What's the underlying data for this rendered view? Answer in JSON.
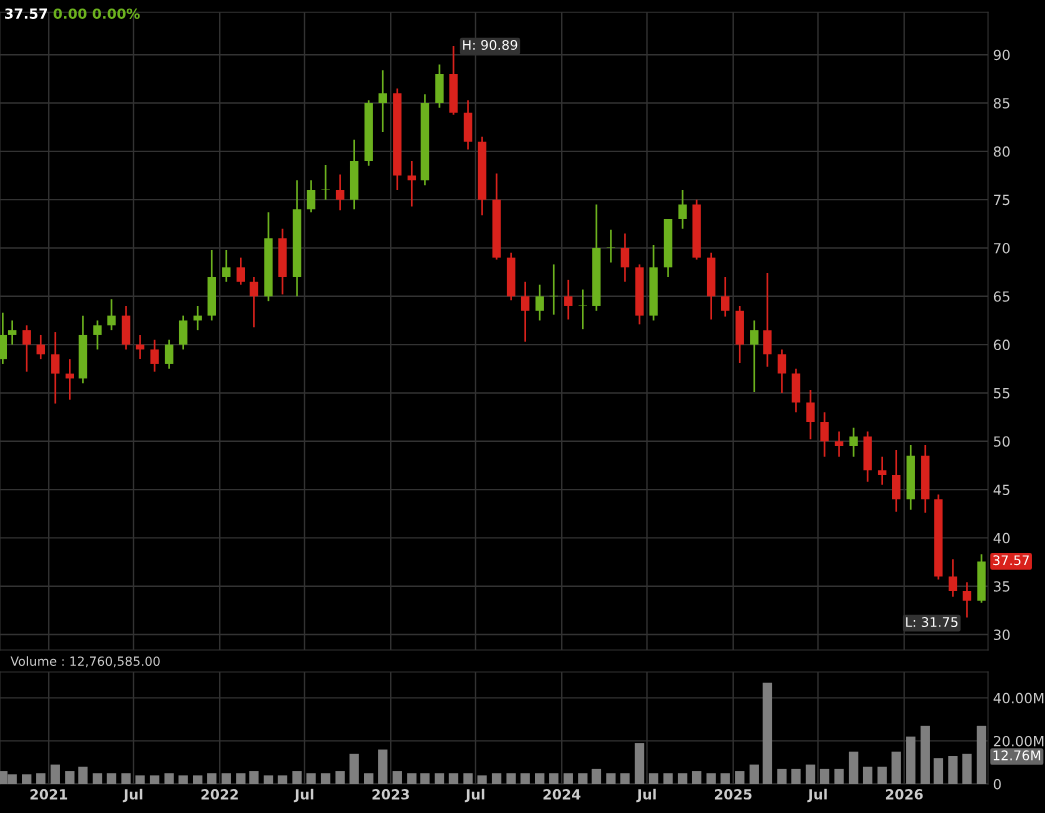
{
  "chart_data": [
    {
      "type": "candlestick",
      "title": "37.57",
      "subtitle": "0.00 0.00%",
      "x": [
        "2020-09-25",
        "2020-10-15",
        "2020-11-15",
        "2020-12-15",
        "2021-01-15",
        "2021-02-15",
        "2021-03-15",
        "2021-04-15",
        "2021-05-15",
        "2021-06-15",
        "2021-07-15",
        "2021-08-15",
        "2021-09-15",
        "2021-10-15",
        "2021-11-15",
        "2021-12-15",
        "2022-01-15",
        "2022-02-15",
        "2022-03-15",
        "2022-04-15",
        "2022-05-15",
        "2022-06-15",
        "2022-07-15",
        "2022-08-15",
        "2022-09-15",
        "2022-10-15",
        "2022-11-15",
        "2022-12-15",
        "2023-01-15",
        "2023-02-15",
        "2023-03-15",
        "2023-04-15",
        "2023-05-15",
        "2023-06-15",
        "2023-07-15",
        "2023-08-15",
        "2023-09-15",
        "2023-10-15",
        "2023-11-15",
        "2023-12-15",
        "2024-01-15",
        "2024-02-15",
        "2024-03-15",
        "2024-04-15",
        "2024-05-15",
        "2024-06-15",
        "2024-07-15",
        "2024-08-15",
        "2024-09-15",
        "2024-10-15",
        "2024-11-15",
        "2024-12-15",
        "2025-01-15",
        "2025-02-15",
        "2025-03-15",
        "2025-04-15",
        "2025-05-15",
        "2025-06-15",
        "2025-07-15",
        "2025-08-15",
        "2025-09-15",
        "2025-10-15",
        "2025-11-15",
        "2025-12-15",
        "2026-01-15",
        "2026-02-15",
        "2026-03-15",
        "2026-04-15",
        "2026-05-15",
        "2026-06-15"
      ],
      "ohlc": [
        [
          58.5,
          63.3,
          58,
          61
        ],
        [
          61,
          62.5,
          60,
          61.5
        ],
        [
          61.5,
          62,
          57.2,
          60
        ],
        [
          60,
          61,
          58.5,
          59
        ],
        [
          59,
          61.3,
          53.9,
          57
        ],
        [
          57,
          58.5,
          54.3,
          56.5
        ],
        [
          56.5,
          63,
          56,
          61
        ],
        [
          61,
          62.5,
          59.5,
          62
        ],
        [
          62,
          64.7,
          61.5,
          63
        ],
        [
          63,
          64,
          59.5,
          60
        ],
        [
          60,
          61,
          58.5,
          59.5
        ],
        [
          59.5,
          60.5,
          57.2,
          58
        ],
        [
          58,
          60.5,
          57.5,
          60
        ],
        [
          60,
          63,
          59.5,
          62.5
        ],
        [
          62.5,
          64,
          61.5,
          63
        ],
        [
          63,
          69.8,
          62.5,
          67
        ],
        [
          67,
          69.8,
          66.5,
          68
        ],
        [
          68,
          69,
          66.2,
          66.5
        ],
        [
          66.5,
          67,
          61.8,
          65
        ],
        [
          65,
          73.7,
          64.5,
          71
        ],
        [
          71,
          72,
          65.2,
          67
        ],
        [
          67,
          77,
          65,
          74
        ],
        [
          74,
          77,
          73.7,
          76
        ],
        [
          76,
          78.6,
          75,
          76
        ],
        [
          76,
          77.6,
          73.9,
          75
        ],
        [
          75,
          81.2,
          74,
          79
        ],
        [
          79,
          85.3,
          78.5,
          85
        ],
        [
          85,
          88.4,
          82,
          86
        ],
        [
          86,
          86.5,
          76,
          77.5
        ],
        [
          77.5,
          79,
          74.3,
          77
        ],
        [
          77,
          85.9,
          76.5,
          85
        ],
        [
          85,
          89,
          84.5,
          88
        ],
        [
          88,
          90.89,
          83.8,
          84
        ],
        [
          84,
          85.3,
          80.2,
          81
        ],
        [
          81,
          81.5,
          73.4,
          75
        ],
        [
          75,
          77.7,
          68.8,
          69
        ],
        [
          69,
          69.5,
          64.6,
          65
        ],
        [
          65,
          66.5,
          60.3,
          63.5
        ],
        [
          63.5,
          66.2,
          62.5,
          65
        ],
        [
          65,
          68.3,
          63.1,
          65
        ],
        [
          65,
          66.7,
          62.6,
          64
        ],
        [
          64,
          65.7,
          61.6,
          64
        ],
        [
          64,
          74.5,
          63.5,
          70
        ],
        [
          70,
          71.9,
          68.5,
          70
        ],
        [
          70,
          71.5,
          66.5,
          68
        ],
        [
          68,
          68.3,
          62.1,
          63
        ],
        [
          63,
          70.3,
          62.5,
          68
        ],
        [
          68,
          73,
          67,
          73
        ],
        [
          73,
          76,
          72,
          74.5
        ],
        [
          74.5,
          75,
          68.8,
          69
        ],
        [
          69,
          69.5,
          62.6,
          65
        ],
        [
          65,
          67,
          62.9,
          63.5
        ],
        [
          63.5,
          64,
          58.1,
          60
        ],
        [
          60,
          62.5,
          55.1,
          61.5
        ],
        [
          61.5,
          67.4,
          57.7,
          59
        ],
        [
          59,
          59.5,
          55,
          57
        ],
        [
          57,
          57.5,
          53,
          54
        ],
        [
          54,
          55.3,
          50.2,
          52
        ],
        [
          52,
          53,
          48.4,
          50
        ],
        [
          50,
          51,
          48.4,
          49.5
        ],
        [
          49.5,
          51.4,
          48.4,
          50.5
        ],
        [
          50.5,
          51,
          45.8,
          47
        ],
        [
          47,
          48.4,
          45.5,
          46.5
        ],
        [
          46.5,
          49.1,
          42.7,
          44
        ],
        [
          44,
          49.6,
          42.9,
          48.5
        ],
        [
          48.5,
          49.6,
          42.6,
          44
        ],
        [
          44,
          44.5,
          35.7,
          36
        ],
        [
          36,
          37.8,
          33.9,
          34.5
        ],
        [
          34.5,
          35.4,
          31.75,
          33.5
        ],
        [
          33.5,
          38.3,
          33.3,
          37.57
        ]
      ],
      "xlim": [
        "2020-09-19",
        "2026-06-29"
      ],
      "ylim": [
        28.4,
        94.4
      ],
      "yticks": [
        30,
        35,
        40,
        45,
        50,
        55,
        60,
        65,
        70,
        75,
        80,
        85,
        90
      ],
      "xticks": [
        {
          "value": "2021-01-01",
          "label": null
        },
        {
          "value": "2021-07-01",
          "label": null
        },
        {
          "value": "2022-01-01",
          "label": null
        },
        {
          "value": "2022-07-01",
          "label": null
        },
        {
          "value": "2023-01-01",
          "label": null
        },
        {
          "value": "2023-07-01",
          "label": null
        },
        {
          "value": "2024-01-01",
          "label": null
        },
        {
          "value": "2024-07-01",
          "label": null
        },
        {
          "value": "2025-01-01",
          "label": null
        },
        {
          "value": "2025-07-01",
          "label": null
        },
        {
          "value": "2026-01-01",
          "label": null
        }
      ],
      "tick_labels": "y",
      "grid": true,
      "annotations": [
        {
          "text": "H: 90.89",
          "x": "2023-05-15",
          "y": 90.89
        },
        {
          "text": "L: 31.75",
          "x": "2026-05-15",
          "y": 31.75
        },
        {
          "text": "37.57",
          "x": "2026-06-15",
          "y": 37.57
        }
      ]
    },
    {
      "type": "bar",
      "title": "Volume : 12,760,585.00",
      "x": [
        "2020-09-25",
        "2020-10-15",
        "2020-11-15",
        "2020-12-15",
        "2021-01-15",
        "2021-02-15",
        "2021-03-15",
        "2021-04-15",
        "2021-05-15",
        "2021-06-15",
        "2021-07-15",
        "2021-08-15",
        "2021-09-15",
        "2021-10-15",
        "2021-11-15",
        "2021-12-15",
        "2022-01-15",
        "2022-02-15",
        "2022-03-15",
        "2022-04-15",
        "2022-05-15",
        "2022-06-15",
        "2022-07-15",
        "2022-08-15",
        "2022-09-15",
        "2022-10-15",
        "2022-11-15",
        "2022-12-15",
        "2023-01-15",
        "2023-02-15",
        "2023-03-15",
        "2023-04-15",
        "2023-05-15",
        "2023-06-15",
        "2023-07-15",
        "2023-08-15",
        "2023-09-15",
        "2023-10-15",
        "2023-11-15",
        "2023-12-15",
        "2024-01-15",
        "2024-02-15",
        "2024-03-15",
        "2024-04-15",
        "2024-05-15",
        "2024-06-15",
        "2024-07-15",
        "2024-08-15",
        "2024-09-15",
        "2024-10-15",
        "2024-11-15",
        "2024-12-15",
        "2025-01-15",
        "2025-02-15",
        "2025-03-15",
        "2025-04-15",
        "2025-05-15",
        "2025-06-15",
        "2025-07-15",
        "2025-08-15",
        "2025-09-15",
        "2025-10-15",
        "2025-11-15",
        "2025-12-15",
        "2026-01-15",
        "2026-02-15",
        "2026-03-15",
        "2026-04-15",
        "2026-05-15",
        "2026-06-15"
      ],
      "series": [
        {
          "color": "#7f7f7f",
          "values": [
            6000000,
            4500000,
            4500000,
            5000000,
            9000000,
            6000000,
            8000000,
            5000000,
            5000000,
            5000000,
            4000000,
            4000000,
            5000000,
            4000000,
            4000000,
            5000000,
            5000000,
            5000000,
            6000000,
            4000000,
            4000000,
            6000000,
            5000000,
            5000000,
            6000000,
            14000000,
            5000000,
            16000000,
            6000000,
            5000000,
            5000000,
            5000000,
            5000000,
            5000000,
            4000000,
            5000000,
            5000000,
            5000000,
            5000000,
            5000000,
            5000000,
            5000000,
            7000000,
            5000000,
            5000000,
            19000000,
            5000000,
            5000000,
            5000000,
            6000000,
            5000000,
            5000000,
            6000000,
            9000000,
            47000000,
            7000000,
            7000000,
            9000000,
            7000000,
            7000000,
            15000000,
            8000000,
            8000000,
            15000000,
            22000000,
            27000000,
            12000000,
            13000000,
            14000000,
            27000000
          ]
        }
      ],
      "xlim": [
        "2020-09-19",
        "2026-06-29"
      ],
      "ylim": [
        0,
        52000000
      ],
      "yticks": [
        0,
        {
          "value": 20000000,
          "label": "20.00M"
        },
        {
          "value": 40000000,
          "label": "40.00M"
        }
      ],
      "xticks": [
        {
          "value": "2021-01-01",
          "label": "2021"
        },
        {
          "value": "2021-07-01",
          "label": "Jul"
        },
        {
          "value": "2022-01-01",
          "label": "2022"
        },
        {
          "value": "2022-07-01",
          "label": "Jul"
        },
        {
          "value": "2023-01-01",
          "label": "2023"
        },
        {
          "value": "2023-07-01",
          "label": "Jul"
        },
        {
          "value": "2024-01-01",
          "label": "2024"
        },
        {
          "value": "2024-07-01",
          "label": "Jul"
        },
        {
          "value": "2025-01-01",
          "label": "2025"
        },
        {
          "value": "2025-07-01",
          "label": "Jul"
        },
        {
          "value": "2026-01-01",
          "label": "2026"
        }
      ],
      "grid": true,
      "annotations": [
        {
          "text": "12.76M",
          "x": "2026-06-15",
          "y": 12760000
        }
      ]
    }
  ]
}
